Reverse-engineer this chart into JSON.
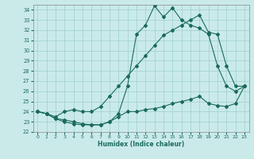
{
  "xlabel": "Humidex (Indice chaleur)",
  "xlim": [
    -0.5,
    23.5
  ],
  "ylim": [
    22,
    34.5
  ],
  "yticks": [
    22,
    23,
    24,
    25,
    26,
    27,
    28,
    29,
    30,
    31,
    32,
    33,
    34
  ],
  "xticks": [
    0,
    1,
    2,
    3,
    4,
    5,
    6,
    7,
    8,
    9,
    10,
    11,
    12,
    13,
    14,
    15,
    16,
    17,
    18,
    19,
    20,
    21,
    22,
    23
  ],
  "bg_color": "#caeaea",
  "grid_color": "#9ecece",
  "line_color": "#1a6b5a",
  "line1_x": [
    0,
    1,
    2,
    3,
    4,
    5,
    6,
    7,
    8,
    9,
    10,
    11,
    12,
    13,
    14,
    15,
    16,
    17,
    18,
    19,
    20,
    21,
    22,
    23
  ],
  "line1_y": [
    24.0,
    23.8,
    23.3,
    23.2,
    23.0,
    22.8,
    22.7,
    22.7,
    23.0,
    23.8,
    26.5,
    31.6,
    32.5,
    34.4,
    33.3,
    34.2,
    33.0,
    32.5,
    32.2,
    31.6,
    28.5,
    26.5,
    26.0,
    26.5
  ],
  "line2_x": [
    0,
    1,
    2,
    3,
    4,
    5,
    6,
    7,
    8,
    9,
    10,
    11,
    12,
    13,
    14,
    15,
    16,
    17,
    18,
    19,
    20,
    21,
    22,
    23
  ],
  "line2_y": [
    24.0,
    23.8,
    23.5,
    24.0,
    24.2,
    24.0,
    24.0,
    24.5,
    25.5,
    26.5,
    27.5,
    28.5,
    29.5,
    30.5,
    31.5,
    32.0,
    32.5,
    33.0,
    33.5,
    31.8,
    31.6,
    28.5,
    26.5,
    26.5
  ],
  "line3_x": [
    0,
    1,
    2,
    3,
    4,
    5,
    6,
    7,
    8,
    9,
    10,
    11,
    12,
    13,
    14,
    15,
    16,
    17,
    18,
    19,
    20,
    21,
    22,
    23
  ],
  "line3_y": [
    24.0,
    23.8,
    23.3,
    23.0,
    22.8,
    22.7,
    22.7,
    22.7,
    23.0,
    23.5,
    24.0,
    24.0,
    24.2,
    24.3,
    24.5,
    24.8,
    25.0,
    25.2,
    25.5,
    24.8,
    24.6,
    24.5,
    24.8,
    26.5
  ]
}
